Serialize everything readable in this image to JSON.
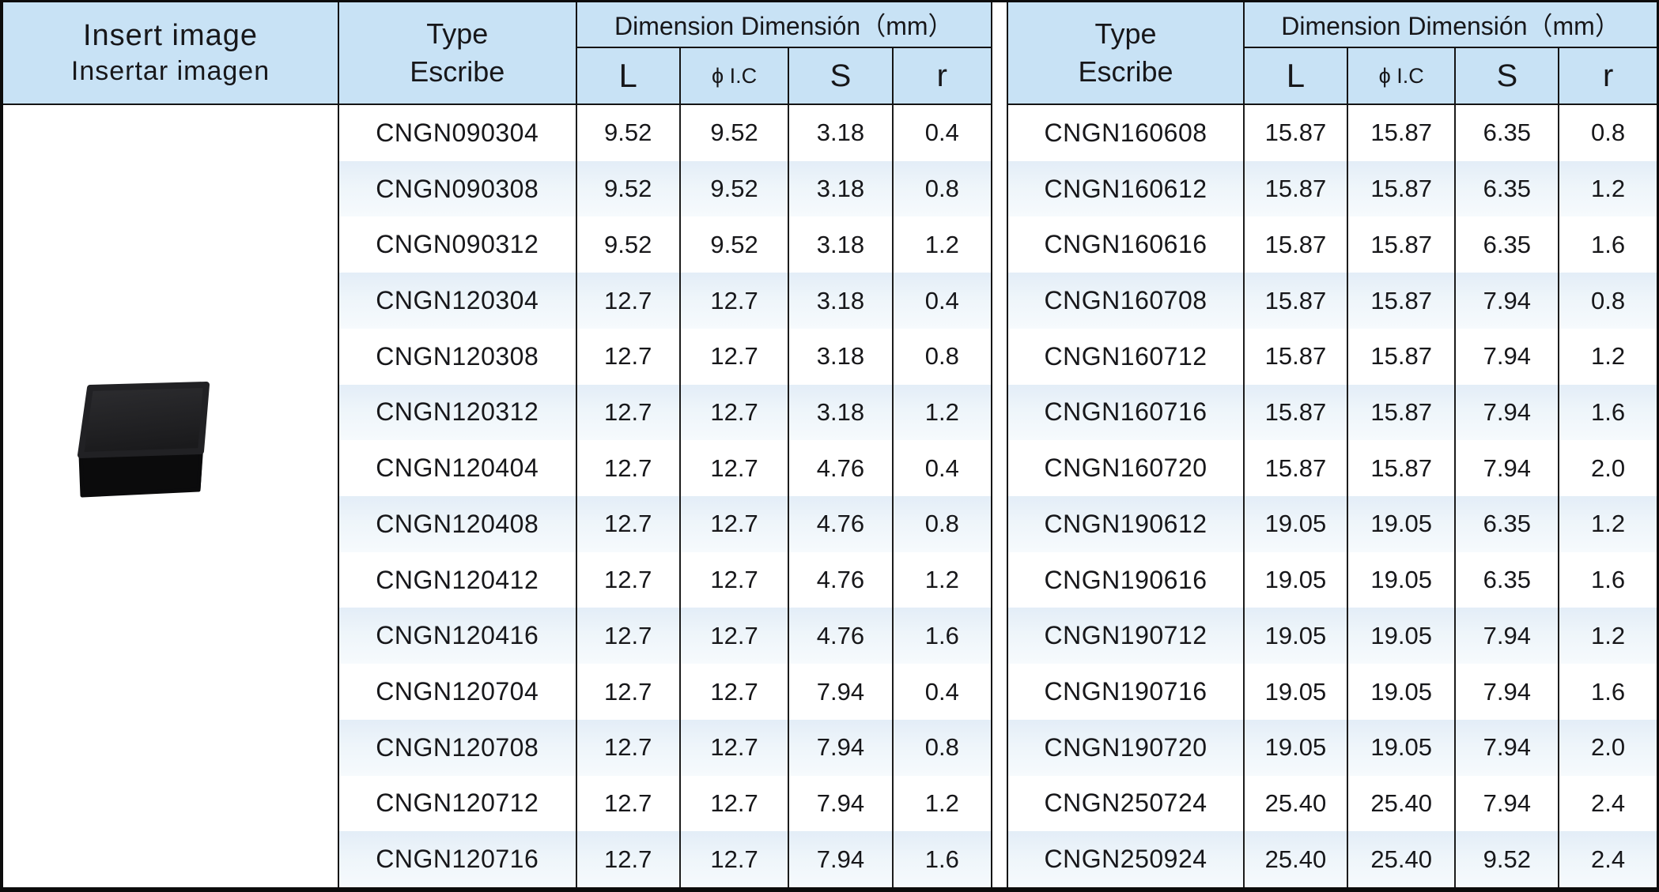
{
  "left_panel": {
    "title_line1": "Insert image",
    "title_line2": "Insertar imagen",
    "image_alt": "cngn-black-ceramic-insert"
  },
  "tables": [
    {
      "type_label_line1": "Type",
      "type_label_line2": "Escribe",
      "dimension_header": "Dimension Dimensión（mm）",
      "columns": [
        "L",
        "ϕ I.C",
        "S",
        "r"
      ],
      "rows": [
        [
          "CNGN090304",
          "9.52",
          "9.52",
          "3.18",
          "0.4"
        ],
        [
          "CNGN090308",
          "9.52",
          "9.52",
          "3.18",
          "0.8"
        ],
        [
          "CNGN090312",
          "9.52",
          "9.52",
          "3.18",
          "1.2"
        ],
        [
          "CNGN120304",
          "12.7",
          "12.7",
          "3.18",
          "0.4"
        ],
        [
          "CNGN120308",
          "12.7",
          "12.7",
          "3.18",
          "0.8"
        ],
        [
          "CNGN120312",
          "12.7",
          "12.7",
          "3.18",
          "1.2"
        ],
        [
          "CNGN120404",
          "12.7",
          "12.7",
          "4.76",
          "0.4"
        ],
        [
          "CNGN120408",
          "12.7",
          "12.7",
          "4.76",
          "0.8"
        ],
        [
          "CNGN120412",
          "12.7",
          "12.7",
          "4.76",
          "1.2"
        ],
        [
          "CNGN120416",
          "12.7",
          "12.7",
          "4.76",
          "1.6"
        ],
        [
          "CNGN120704",
          "12.7",
          "12.7",
          "7.94",
          "0.4"
        ],
        [
          "CNGN120708",
          "12.7",
          "12.7",
          "7.94",
          "0.8"
        ],
        [
          "CNGN120712",
          "12.7",
          "12.7",
          "7.94",
          "1.2"
        ],
        [
          "CNGN120716",
          "12.7",
          "12.7",
          "7.94",
          "1.6"
        ]
      ]
    },
    {
      "type_label_line1": "Type",
      "type_label_line2": "Escribe",
      "dimension_header": "Dimension Dimensión（mm）",
      "columns": [
        "L",
        "ϕ I.C",
        "S",
        "r"
      ],
      "rows": [
        [
          "CNGN160608",
          "15.87",
          "15.87",
          "6.35",
          "0.8"
        ],
        [
          "CNGN160612",
          "15.87",
          "15.87",
          "6.35",
          "1.2"
        ],
        [
          "CNGN160616",
          "15.87",
          "15.87",
          "6.35",
          "1.6"
        ],
        [
          "CNGN160708",
          "15.87",
          "15.87",
          "7.94",
          "0.8"
        ],
        [
          "CNGN160712",
          "15.87",
          "15.87",
          "7.94",
          "1.2"
        ],
        [
          "CNGN160716",
          "15.87",
          "15.87",
          "7.94",
          "1.6"
        ],
        [
          "CNGN160720",
          "15.87",
          "15.87",
          "7.94",
          "2.0"
        ],
        [
          "CNGN190612",
          "19.05",
          "19.05",
          "6.35",
          "1.2"
        ],
        [
          "CNGN190616",
          "19.05",
          "19.05",
          "6.35",
          "1.6"
        ],
        [
          "CNGN190712",
          "19.05",
          "19.05",
          "7.94",
          "1.2"
        ],
        [
          "CNGN190716",
          "19.05",
          "19.05",
          "7.94",
          "1.6"
        ],
        [
          "CNGN190720",
          "19.05",
          "19.05",
          "7.94",
          "2.0"
        ],
        [
          "CNGN250724",
          "25.40",
          "25.40",
          "7.94",
          "2.4"
        ],
        [
          "CNGN250924",
          "25.40",
          "25.40",
          "9.52",
          "2.4"
        ]
      ]
    }
  ],
  "colors": {
    "header_bg": "#c8e2f5",
    "row_alt_bg": "#e9f2f9",
    "border": "#141414",
    "insert_top_face": "#222225",
    "insert_front_face": "#0b0b0c"
  }
}
